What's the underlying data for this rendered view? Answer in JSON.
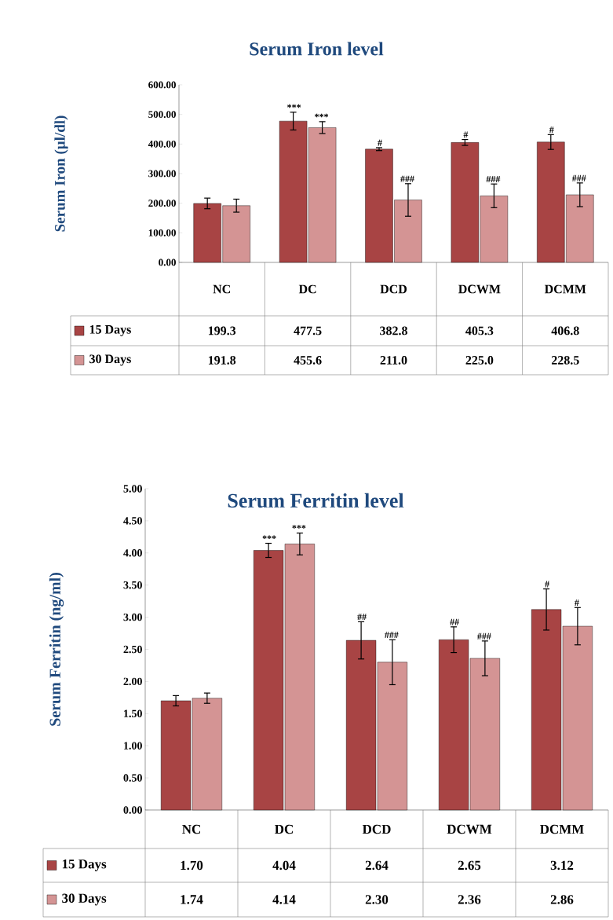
{
  "chart_data": [
    {
      "type": "bar",
      "title": "Serum Iron level",
      "ylabel": "Serum Iron (µl/dl)",
      "categories": [
        "NC",
        "DC",
        "DCD",
        "DCWM",
        "DCMM"
      ],
      "series": [
        {
          "name": "15 Days",
          "color": "#a84444",
          "values": [
            199.3,
            477.5,
            382.8,
            405.3,
            406.8
          ],
          "errors": [
            18,
            30,
            5,
            10,
            25
          ],
          "value_labels": [
            "199.3",
            "477.5",
            "382.8",
            "405.3",
            "406.8"
          ]
        },
        {
          "name": "30 Days",
          "color": "#d49494",
          "values": [
            191.8,
            455.6,
            211.0,
            225.0,
            228.5
          ],
          "errors": [
            22,
            20,
            55,
            40,
            40
          ],
          "value_labels": [
            "191.8",
            "455.6",
            "211.0",
            "225.0",
            "228.5"
          ]
        }
      ],
      "ylim": [
        0,
        600
      ],
      "yticks": [
        {
          "value": 0,
          "label": "0.00"
        },
        {
          "value": 100,
          "label": "100.00"
        },
        {
          "value": 200,
          "label": "200.00"
        },
        {
          "value": 300,
          "label": "300.00"
        },
        {
          "value": 400,
          "label": "400.00"
        },
        {
          "value": 500,
          "label": "500.00"
        },
        {
          "value": 600,
          "label": "600.00"
        }
      ],
      "legend": "bottom left",
      "annotations": [
        "***",
        "***",
        "#",
        "###",
        "#",
        "###",
        "#",
        "###"
      ]
    },
    {
      "type": "bar",
      "title": "Serum Ferritin level",
      "ylabel": "Serum Ferritin (ng/ml)",
      "categories": [
        "NC",
        "DC",
        "DCD",
        "DCWM",
        "DCMM"
      ],
      "series": [
        {
          "name": "15 Days",
          "color": "#a84444",
          "values": [
            1.7,
            4.04,
            2.64,
            2.65,
            3.12
          ],
          "errors": [
            0.08,
            0.11,
            0.29,
            0.2,
            0.32
          ],
          "value_labels": [
            "1.70",
            "4.04",
            "2.64",
            "2.65",
            "3.12"
          ]
        },
        {
          "name": "30 Days",
          "color": "#d49494",
          "values": [
            1.74,
            4.14,
            2.3,
            2.36,
            2.86
          ],
          "errors": [
            0.08,
            0.17,
            0.35,
            0.27,
            0.29
          ],
          "value_labels": [
            "1.74",
            "4.14",
            "2.30",
            "2.36",
            "2.86"
          ]
        }
      ],
      "ylim": [
        0,
        5
      ],
      "yticks": [
        {
          "value": 0,
          "label": "0.00"
        },
        {
          "value": 0.5,
          "label": "0.50"
        },
        {
          "value": 1,
          "label": "1.00"
        },
        {
          "value": 1.5,
          "label": "1.50"
        },
        {
          "value": 2,
          "label": "2.00"
        },
        {
          "value": 2.5,
          "label": "2.50"
        },
        {
          "value": 3,
          "label": "3.00"
        },
        {
          "value": 3.5,
          "label": "3.50"
        },
        {
          "value": 4,
          "label": "4.00"
        },
        {
          "value": 4.5,
          "label": "4.50"
        },
        {
          "value": 5,
          "label": "5.00"
        }
      ],
      "legend": "bottom left",
      "annotations": [
        "***",
        "***",
        "##",
        "###",
        "##",
        "###",
        "#",
        "#"
      ]
    }
  ]
}
